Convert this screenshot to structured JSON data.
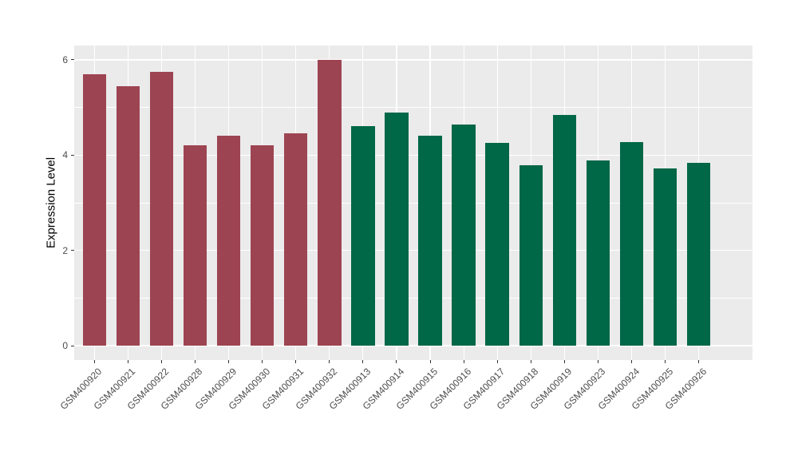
{
  "chart_data": {
    "type": "bar",
    "title": "",
    "xlabel": "",
    "ylabel": "Expression Level",
    "categories": [
      "GSM400920",
      "GSM400921",
      "GSM400922",
      "GSM400928",
      "GSM400929",
      "GSM400930",
      "GSM400931",
      "GSM400932",
      "GSM400913",
      "GSM400914",
      "GSM400915",
      "GSM400916",
      "GSM400917",
      "GSM400918",
      "GSM400919",
      "GSM400923",
      "GSM400924",
      "GSM400925",
      "GSM400926"
    ],
    "values": [
      5.7,
      5.45,
      5.75,
      4.2,
      4.4,
      4.2,
      4.45,
      6.0,
      4.6,
      4.9,
      4.4,
      4.65,
      4.25,
      3.78,
      4.85,
      3.88,
      4.27,
      3.72,
      3.83
    ],
    "groups": [
      "red",
      "red",
      "red",
      "red",
      "red",
      "red",
      "red",
      "red",
      "green",
      "green",
      "green",
      "green",
      "green",
      "green",
      "green",
      "green",
      "green",
      "green",
      "green"
    ],
    "bar_colors": {
      "red": "#9D4452",
      "green": "#006747"
    },
    "y_ticks": [
      0,
      2,
      4,
      6
    ],
    "y_minor_ticks": [
      1,
      3,
      5
    ],
    "ylim": [
      -0.3,
      6.3
    ],
    "bar_width_fraction": 0.7,
    "grid": true,
    "legend": "none",
    "panel_bg": "#EBEBEB",
    "grid_color": "#FFFFFF",
    "axis_text_color": "#4D4D4D",
    "tick_mark_color": "#333333"
  }
}
